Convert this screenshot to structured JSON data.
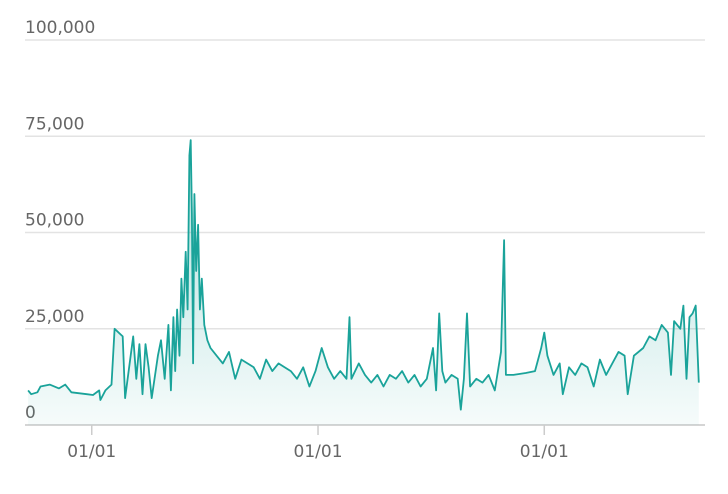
{
  "chart_data": {
    "type": "line",
    "color": "#1aa39a",
    "grid": true,
    "area": true,
    "xlim": [
      0,
      1100
    ],
    "ylim": [
      0,
      100000
    ],
    "yticks": [
      {
        "value": 0,
        "label": "0"
      },
      {
        "value": 25000,
        "label": "25,000"
      },
      {
        "value": 50000,
        "label": "50,000"
      },
      {
        "value": 75000,
        "label": "75,000"
      },
      {
        "value": 100000,
        "label": "100,000"
      }
    ],
    "xticks": [
      {
        "value": 108,
        "label": "01/01"
      },
      {
        "value": 474,
        "label": "01/01"
      },
      {
        "value": 840,
        "label": "01/01"
      }
    ],
    "x": [
      5,
      10,
      20,
      25,
      40,
      55,
      65,
      75,
      100,
      110,
      120,
      122,
      130,
      140,
      145,
      158,
      162,
      175,
      180,
      185,
      190,
      195,
      200,
      205,
      215,
      220,
      226,
      232,
      236,
      240,
      243,
      246,
      250,
      253,
      256,
      260,
      263,
      266,
      268,
      270,
      272,
      274,
      277,
      280,
      283,
      286,
      290,
      295,
      300,
      310,
      320,
      330,
      340,
      350,
      360,
      370,
      380,
      390,
      400,
      410,
      420,
      430,
      440,
      450,
      460,
      470,
      480,
      490,
      500,
      510,
      520,
      525,
      528,
      540,
      550,
      560,
      570,
      580,
      590,
      600,
      610,
      620,
      630,
      640,
      650,
      660,
      665,
      670,
      675,
      680,
      690,
      700,
      705,
      710,
      715,
      720,
      730,
      740,
      750,
      760,
      770,
      775,
      778,
      790,
      810,
      825,
      835,
      840,
      845,
      855,
      865,
      870,
      880,
      890,
      900,
      910,
      920,
      930,
      940,
      950,
      960,
      970,
      975,
      985,
      1000,
      1010,
      1020,
      1030,
      1040,
      1045,
      1050,
      1060,
      1065,
      1070,
      1075,
      1080,
      1085,
      1090
    ],
    "values": [
      9000,
      8000,
      8500,
      10000,
      10500,
      9500,
      10500,
      8500,
      8000,
      7800,
      9000,
      6500,
      9000,
      10500,
      25000,
      23000,
      7000,
      23000,
      12000,
      21000,
      8000,
      21000,
      15000,
      7000,
      18000,
      22000,
      12000,
      26000,
      9000,
      28000,
      14000,
      30000,
      18000,
      38000,
      28000,
      45000,
      30000,
      70000,
      74000,
      55000,
      16000,
      60000,
      40000,
      52000,
      30000,
      38000,
      26000,
      22000,
      20000,
      18000,
      16000,
      19000,
      12000,
      17000,
      16000,
      15000,
      12000,
      17000,
      14000,
      16000,
      15000,
      14000,
      12000,
      15000,
      10000,
      14000,
      20000,
      15000,
      12000,
      14000,
      12000,
      28000,
      12000,
      16000,
      13000,
      11000,
      13000,
      10000,
      13000,
      12000,
      14000,
      11000,
      13000,
      10000,
      12000,
      20000,
      9000,
      29000,
      14000,
      11000,
      13000,
      12000,
      4000,
      12000,
      29000,
      10000,
      12000,
      11000,
      13000,
      9000,
      19000,
      48000,
      13000,
      13000,
      13500,
      14000,
      20000,
      24000,
      18000,
      13000,
      16000,
      8000,
      15000,
      13000,
      16000,
      15000,
      10000,
      17000,
      13000,
      16000,
      19000,
      18000,
      8000,
      18000,
      20000,
      23000,
      22000,
      26000,
      24000,
      13000,
      27000,
      25000,
      31000,
      12000,
      28000,
      29000,
      31000,
      11000
    ]
  }
}
